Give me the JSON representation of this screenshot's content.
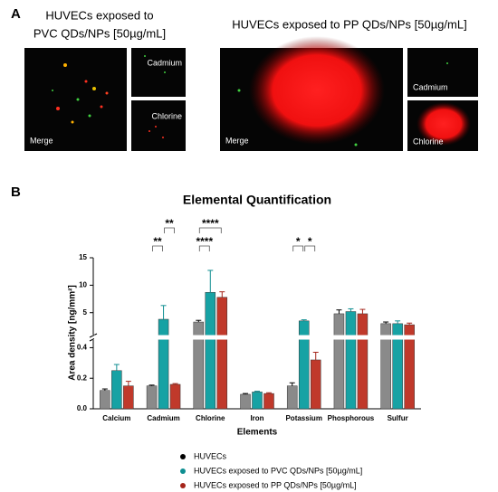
{
  "panel_a": {
    "label": "A",
    "left": {
      "title_lines": [
        "HUVECs exposed to",
        "PVC QDs/NPs [50µg/mL]"
      ],
      "images": [
        "Merge",
        "Cadmium",
        "Chlorine"
      ]
    },
    "right": {
      "title": "HUVECs exposed to PP QDs/NPs [50µg/mL]",
      "images": [
        "Merge",
        "Cadmium",
        "Chlorine"
      ]
    }
  },
  "chart_data": {
    "type": "bar",
    "panel_label": "B",
    "title": "Elemental Quantification",
    "y_label": "Area density [ng/mm²]",
    "x_label": "Elements",
    "categories": [
      "Calcium",
      "Cadmium",
      "Chlorine",
      "Iron",
      "Potassium",
      "Phosphorous",
      "Sulfur"
    ],
    "series": [
      {
        "name": "HUVECs",
        "color": "#8a8a8a",
        "marker_color": "#000000",
        "values": [
          0.12,
          0.15,
          3.3,
          0.095,
          0.15,
          4.8,
          3.0
        ],
        "errors": [
          0.01,
          0.005,
          0.3,
          0.005,
          0.02,
          0.7,
          0.3
        ]
      },
      {
        "name": "HUVECs exposed to PVC QDs/NPs [50µg/mL]",
        "color": "#17a2a4",
        "marker_color": "#0e8e91",
        "values": [
          0.25,
          3.8,
          8.7,
          0.11,
          3.5,
          5.2,
          3.0
        ],
        "errors": [
          0.04,
          2.5,
          4,
          0.005,
          0.2,
          0.5,
          0.5
        ]
      },
      {
        "name": "HUVECs exposed to PP QDs/NPs [50µg/mL]",
        "color": "#c0392b",
        "marker_color": "#a5251a",
        "values": [
          0.15,
          0.16,
          7.8,
          0.1,
          0.32,
          4.8,
          2.8
        ],
        "errors": [
          0.03,
          0.005,
          1,
          0.005,
          0.05,
          0.8,
          0.3
        ]
      }
    ],
    "y_segments": [
      {
        "ylim": [
          0,
          0.45
        ],
        "yticks": [
          {
            "value": 0,
            "label": "0.0"
          },
          {
            "value": 0.2,
            "label": "0.2"
          },
          {
            "value": 0.4,
            "label": "0.4"
          }
        ]
      },
      {
        "ylim": [
          1,
          15
        ],
        "yticks": [
          5,
          10,
          15
        ]
      }
    ],
    "comparisons": [
      {
        "label": "**",
        "category": 1,
        "bars": [
          0,
          1
        ]
      },
      {
        "label": "**",
        "category": 1,
        "bars": [
          1,
          2
        ]
      },
      {
        "label": "****",
        "category": 2,
        "bars": [
          0,
          1
        ]
      },
      {
        "label": "****",
        "category": 2,
        "bars": [
          0,
          2
        ]
      },
      {
        "label": "*",
        "category": 4,
        "bars": [
          0,
          1
        ]
      },
      {
        "label": "*",
        "category": 4,
        "bars": [
          1,
          2
        ]
      }
    ]
  }
}
